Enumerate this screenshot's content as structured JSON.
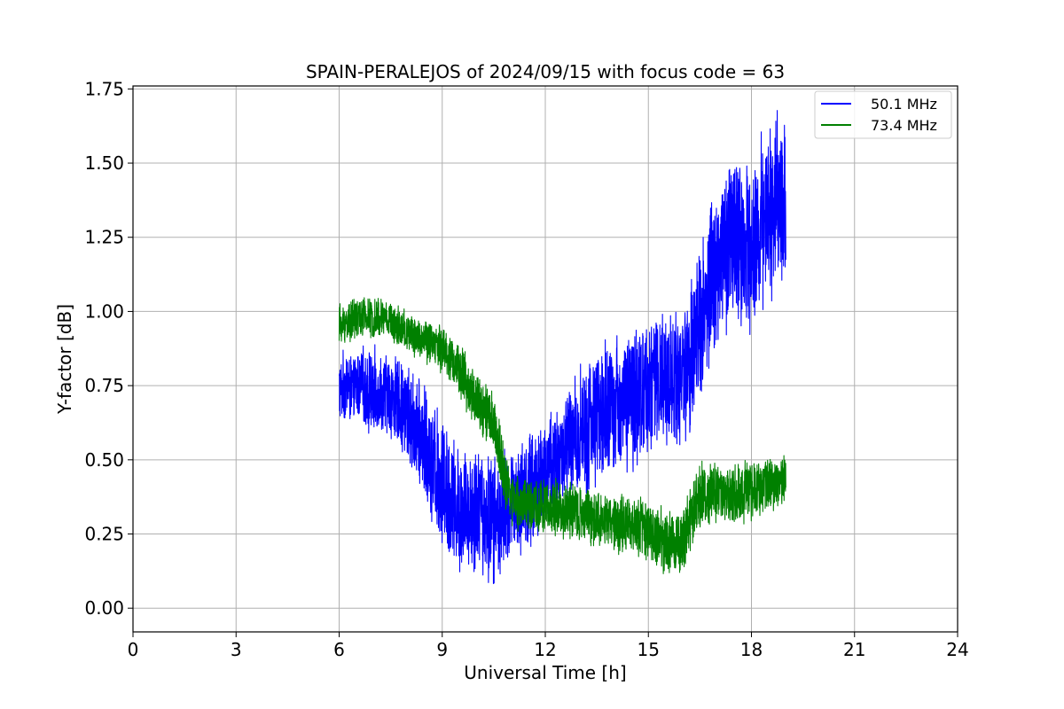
{
  "chart_data": {
    "type": "line",
    "title": "SPAIN-PERALEJOS of 2024/09/15 with focus code = 63",
    "xlabel": "Universal Time [h]",
    "ylabel": "Y-factor [dB]",
    "xlim": [
      0,
      24
    ],
    "ylim": [
      -0.08,
      1.76
    ],
    "xticks": [
      0,
      3,
      6,
      9,
      12,
      15,
      18,
      21,
      24
    ],
    "xtick_labels": [
      "0",
      "3",
      "6",
      "9",
      "12",
      "15",
      "18",
      "21",
      "24"
    ],
    "yticks": [
      0,
      0.25,
      0.5,
      0.75,
      1.0,
      1.25,
      1.5,
      1.75
    ],
    "ytick_labels": [
      "0.00",
      "0.25",
      "0.50",
      "0.75",
      "1.00",
      "1.25",
      "1.50",
      "1.75"
    ],
    "grid": true,
    "legend_position": "top-right",
    "series": [
      {
        "name": "50.1 MHz",
        "color": "#0000ff",
        "x": [
          6.0,
          6.5,
          7.0,
          7.5,
          8.0,
          8.5,
          9.0,
          9.5,
          10.0,
          10.5,
          11.0,
          11.5,
          12.0,
          12.5,
          13.0,
          13.5,
          14.0,
          14.5,
          15.0,
          15.5,
          16.0,
          16.5,
          17.0,
          17.5,
          18.0,
          18.5,
          19.0
        ],
        "y": [
          0.74,
          0.75,
          0.72,
          0.72,
          0.65,
          0.55,
          0.42,
          0.33,
          0.33,
          0.3,
          0.35,
          0.4,
          0.45,
          0.52,
          0.58,
          0.65,
          0.68,
          0.72,
          0.75,
          0.78,
          0.8,
          0.95,
          1.15,
          1.25,
          1.2,
          1.35,
          1.4
        ],
        "noise": [
          0.1,
          0.1,
          0.12,
          0.12,
          0.14,
          0.16,
          0.18,
          0.18,
          0.18,
          0.18,
          0.16,
          0.16,
          0.16,
          0.16,
          0.18,
          0.2,
          0.2,
          0.2,
          0.2,
          0.2,
          0.2,
          0.22,
          0.24,
          0.24,
          0.24,
          0.24,
          0.22
        ]
      },
      {
        "name": "73.4 MHz",
        "color": "#008000",
        "x": [
          6.0,
          6.5,
          7.0,
          7.5,
          8.0,
          8.5,
          9.0,
          9.5,
          10.0,
          10.5,
          10.8,
          11.0,
          11.5,
          12.0,
          12.5,
          13.0,
          13.5,
          14.0,
          14.5,
          15.0,
          15.5,
          16.0,
          16.5,
          17.0,
          17.5,
          18.0,
          18.5,
          19.0
        ],
        "y": [
          0.95,
          0.98,
          0.98,
          0.97,
          0.93,
          0.9,
          0.88,
          0.8,
          0.7,
          0.62,
          0.45,
          0.37,
          0.35,
          0.34,
          0.33,
          0.32,
          0.3,
          0.29,
          0.28,
          0.26,
          0.22,
          0.22,
          0.38,
          0.38,
          0.38,
          0.4,
          0.42,
          0.44
        ],
        "noise": [
          0.06,
          0.06,
          0.06,
          0.06,
          0.06,
          0.06,
          0.07,
          0.08,
          0.08,
          0.08,
          0.1,
          0.08,
          0.08,
          0.08,
          0.08,
          0.08,
          0.08,
          0.08,
          0.08,
          0.09,
          0.09,
          0.09,
          0.1,
          0.08,
          0.08,
          0.08,
          0.08,
          0.08
        ]
      }
    ]
  }
}
